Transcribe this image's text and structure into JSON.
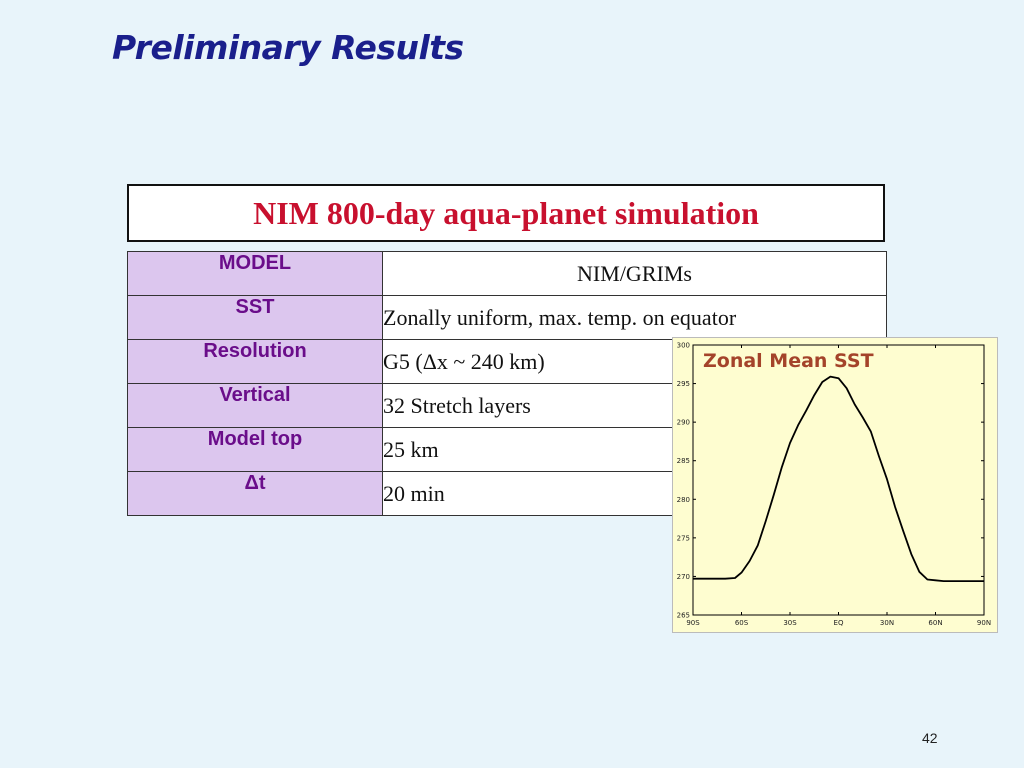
{
  "slide": {
    "title": "Preliminary Results",
    "page_number": "42"
  },
  "table": {
    "heading": "NIM 800-day aqua-planet simulation",
    "rows": [
      {
        "label": "MODEL",
        "value": "NIM/GRIMs"
      },
      {
        "label": "SST",
        "value": "Zonally uniform, max. temp. on equator"
      },
      {
        "label": "Resolution",
        "value": "G5 (Δx ~ 240 km)"
      },
      {
        "label": "Vertical",
        "value": "32  Stretch layers"
      },
      {
        "label": "Model top",
        "value": "25 km"
      },
      {
        "label": "Δt",
        "value": "20 min"
      }
    ]
  },
  "chart_data": {
    "type": "line",
    "title": "Zonal Mean SST",
    "xlabel": "",
    "ylabel": "",
    "x_ticks": [
      "90S",
      "60S",
      "30S",
      "EQ",
      "30N",
      "60N",
      "90N"
    ],
    "x_tick_values": [
      -90,
      -60,
      -30,
      0,
      30,
      60,
      90
    ],
    "y_ticks": [
      265,
      270,
      275,
      280,
      285,
      290,
      295,
      300
    ],
    "xlim": [
      -90,
      90
    ],
    "ylim": [
      265,
      300
    ],
    "grid": false,
    "line_color": "#000000",
    "background": "#fefdd0",
    "title_color": "#a4432a",
    "series": [
      {
        "x": [
          -90,
          -80,
          -70,
          -64,
          -60,
          -55,
          -50,
          -45,
          -40,
          -35,
          -30,
          -25,
          -20,
          -15,
          -10,
          -5,
          0,
          5,
          10,
          15,
          20,
          25,
          30,
          35,
          40,
          45,
          50,
          55,
          60,
          65,
          70,
          80,
          90
        ],
        "values": [
          269.7,
          269.7,
          269.7,
          269.8,
          270.5,
          272.0,
          274.0,
          277.2,
          280.6,
          284.2,
          287.3,
          289.6,
          291.5,
          293.5,
          295.2,
          295.9,
          295.7,
          294.4,
          292.3,
          290.6,
          288.8,
          285.6,
          282.6,
          279.0,
          275.9,
          272.9,
          270.6,
          269.6,
          269.5,
          269.4,
          269.4,
          269.4,
          269.4
        ]
      }
    ]
  }
}
